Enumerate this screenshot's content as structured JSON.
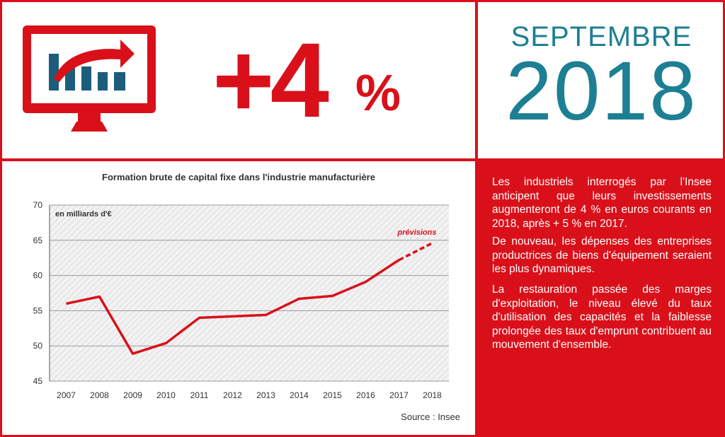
{
  "headline": {
    "figure": "+4",
    "percent": "%"
  },
  "date": {
    "month": "SEPTEMBRE",
    "year": "2018"
  },
  "icons": {
    "monitor": "monitor-rising-chart-icon"
  },
  "colors": {
    "red": "#d9101a",
    "teal": "#1d7f93",
    "bar_blue": "#1b5d7a",
    "grid": "#9a9a9a"
  },
  "chart_data": {
    "type": "line",
    "title": "Formation brute de capital fixe dans l'industrie manufacturière",
    "unit_label": "en milliards d'€",
    "xlabel": "",
    "ylabel": "",
    "categories": [
      "2007",
      "2008",
      "2009",
      "2010",
      "2011",
      "2012",
      "2013",
      "2014",
      "2015",
      "2016",
      "2017",
      "2018"
    ],
    "series": [
      {
        "values": [
          56.0,
          57.0,
          48.9,
          50.4,
          54.0,
          54.2,
          54.4,
          56.7,
          57.1,
          59.1,
          62.2,
          64.6
        ],
        "forecast_from_index": 10
      }
    ],
    "forecast_label": "prévisions",
    "ylim": [
      45,
      70
    ],
    "yticks": [
      45,
      50,
      55,
      60,
      65,
      70
    ],
    "grid": true,
    "source": "Source : Insee"
  },
  "text_panel": {
    "paragraphs": [
      "Les industriels interrogés par l'Insee anticipent que leurs investissements augmenteront de 4 % en euros courants en 2018, après + 5 % en 2017.",
      "De nouveau, les dépenses des entreprises productrices de biens d'équipement seraient les plus dynamiques.",
      "La restauration passée des marges d'exploitation, le niveau élevé du taux d'utilisation des capacités et la faiblesse prolongée des taux d'emprunt contribuent au mouvement d'ensemble."
    ]
  }
}
